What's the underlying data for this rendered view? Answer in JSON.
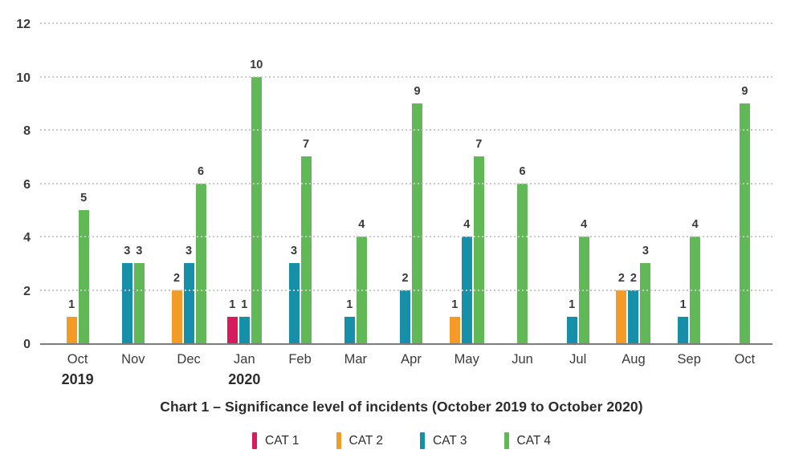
{
  "chart_data": {
    "type": "bar",
    "title": "Chart 1 – Significance level of incidents (October 2019 to October 2020)",
    "categories": [
      "Oct",
      "Nov",
      "Dec",
      "Jan",
      "Feb",
      "Mar",
      "Apr",
      "May",
      "Jun",
      "Jul",
      "Aug",
      "Sep",
      "Oct"
    ],
    "year_labels": [
      "2019",
      "",
      "",
      "2020",
      "",
      "",
      "",
      "",
      "",
      "",
      "",
      "",
      ""
    ],
    "series": [
      {
        "name": "CAT 1",
        "color": "#d61c5e",
        "values": [
          null,
          null,
          null,
          1,
          null,
          null,
          null,
          null,
          null,
          null,
          null,
          null,
          null
        ]
      },
      {
        "name": "CAT 2",
        "color": "#f39b26",
        "values": [
          1,
          null,
          2,
          null,
          null,
          null,
          null,
          1,
          null,
          null,
          2,
          null,
          null
        ]
      },
      {
        "name": "CAT 3",
        "color": "#1590a8",
        "values": [
          null,
          3,
          3,
          1,
          3,
          1,
          2,
          4,
          null,
          1,
          2,
          1,
          null
        ]
      },
      {
        "name": "CAT 4",
        "color": "#61b856",
        "values": [
          5,
          3,
          6,
          10,
          7,
          4,
          9,
          7,
          6,
          4,
          3,
          4,
          9
        ]
      }
    ],
    "y_ticks": [
      0,
      2,
      4,
      6,
      8,
      10,
      12
    ],
    "ylim": [
      0,
      12
    ],
    "grid": "horizontal-dotted",
    "legend_position": "bottom",
    "value_labels": "above-bars"
  }
}
